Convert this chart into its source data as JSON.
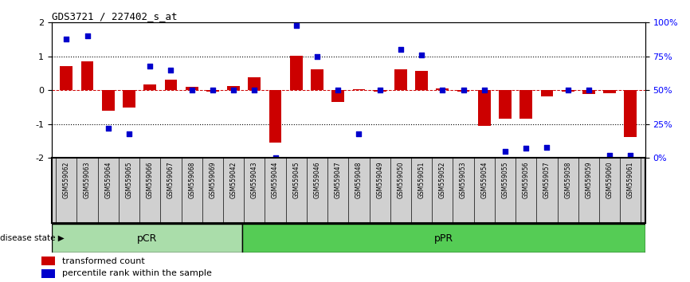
{
  "title": "GDS3721 / 227402_s_at",
  "samples": [
    "GSM559062",
    "GSM559063",
    "GSM559064",
    "GSM559065",
    "GSM559066",
    "GSM559067",
    "GSM559068",
    "GSM559069",
    "GSM559042",
    "GSM559043",
    "GSM559044",
    "GSM559045",
    "GSM559046",
    "GSM559047",
    "GSM559048",
    "GSM559049",
    "GSM559050",
    "GSM559051",
    "GSM559052",
    "GSM559053",
    "GSM559054",
    "GSM559055",
    "GSM559056",
    "GSM559057",
    "GSM559058",
    "GSM559059",
    "GSM559060",
    "GSM559061"
  ],
  "transformed_count": [
    0.72,
    0.85,
    -0.6,
    -0.52,
    0.17,
    0.32,
    0.1,
    -0.05,
    0.12,
    0.38,
    -1.55,
    1.02,
    0.62,
    -0.35,
    0.02,
    -0.05,
    0.62,
    0.58,
    0.05,
    -0.05,
    -1.05,
    -0.85,
    -0.85,
    -0.18,
    -0.05,
    -0.12,
    -0.08,
    -1.38
  ],
  "percentile_rank": [
    88,
    90,
    22,
    18,
    68,
    65,
    50,
    50,
    50,
    50,
    0,
    98,
    75,
    50,
    18,
    50,
    80,
    76,
    50,
    50,
    50,
    5,
    7,
    8,
    50,
    50,
    2,
    2
  ],
  "pCR_count": 9,
  "pPR_count": 19,
  "bar_color": "#cc0000",
  "dot_color": "#0000cc",
  "pCR_color": "#aaddaa",
  "pPR_color": "#55cc55",
  "ylim_left": [
    -2.0,
    2.0
  ],
  "ylim_right": [
    0,
    100
  ],
  "yticks_left": [
    -2,
    -1,
    0,
    1,
    2
  ],
  "yticks_right": [
    0,
    25,
    50,
    75,
    100
  ],
  "ytick_labels_right": [
    "0%",
    "25%",
    "50%",
    "75%",
    "100%"
  ],
  "dotted_lines": [
    -1,
    0,
    1
  ],
  "background_color": "#ffffff",
  "label_transformed": "transformed count",
  "label_percentile": "percentile rank within the sample",
  "disease_state_label": "disease state",
  "pCR_label": "pCR",
  "pPR_label": "pPR"
}
